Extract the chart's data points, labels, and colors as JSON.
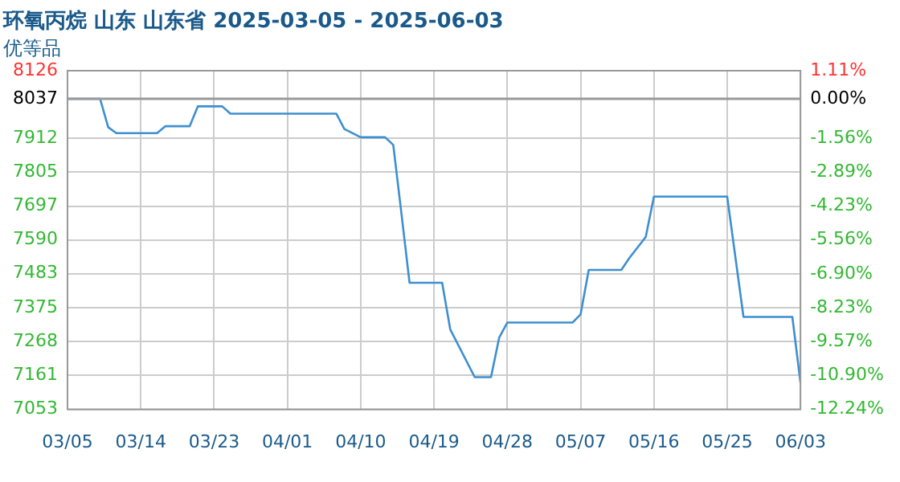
{
  "chart_data": {
    "type": "line",
    "title": "环氧丙烷 山东 山东省 2025-03-05 - 2025-06-03",
    "subtitle": "优等品",
    "x": [
      "2025-03-05",
      "2025-03-09",
      "2025-03-10",
      "2025-03-11",
      "2025-03-16",
      "2025-03-17",
      "2025-03-20",
      "2025-03-21",
      "2025-03-24",
      "2025-03-25",
      "2025-04-07",
      "2025-04-08",
      "2025-04-10",
      "2025-04-13",
      "2025-04-14",
      "2025-04-15",
      "2025-04-16",
      "2025-04-20",
      "2025-04-21",
      "2025-04-24",
      "2025-04-26",
      "2025-04-27",
      "2025-04-28",
      "2025-05-06",
      "2025-05-07",
      "2025-05-08",
      "2025-05-12",
      "2025-05-13",
      "2025-05-15",
      "2025-05-16",
      "2025-05-25",
      "2025-05-27",
      "2025-06-02",
      "2025-06-03"
    ],
    "series": [
      {
        "color": "#3d8fd0",
        "values": [
          8037,
          8037,
          7947,
          7928,
          7928,
          7950,
          7950,
          8013,
          8013,
          7990,
          7990,
          7941,
          7915,
          7915,
          7891,
          7674,
          7454,
          7454,
          7306,
          7155,
          7155,
          7280,
          7328,
          7328,
          7354,
          7495,
          7495,
          7533,
          7599,
          7727,
          7727,
          7346,
          7346,
          7137
        ]
      }
    ],
    "xlim": [
      "2025-03-05",
      "2025-06-03"
    ],
    "xticks": [
      {
        "value": "2025-03-05",
        "label": "03/05"
      },
      {
        "value": "2025-03-14",
        "label": "03/14"
      },
      {
        "value": "2025-03-23",
        "label": "03/23"
      },
      {
        "value": "2025-04-01",
        "label": "04/01"
      },
      {
        "value": "2025-04-10",
        "label": "04/10"
      },
      {
        "value": "2025-04-19",
        "label": "04/19"
      },
      {
        "value": "2025-04-28",
        "label": "04/28"
      },
      {
        "value": "2025-05-07",
        "label": "05/07"
      },
      {
        "value": "2025-05-16",
        "label": "05/16"
      },
      {
        "value": "2025-05-25",
        "label": "05/25"
      },
      {
        "value": "2025-06-03",
        "label": "06/03"
      }
    ],
    "ylim": [
      7053,
      8126
    ],
    "yticks": [
      7053,
      7161,
      7268,
      7375,
      7483,
      7590,
      7697,
      7805,
      7912,
      8037,
      8126
    ],
    "y2lim": [
      -12.24,
      1.11
    ],
    "y2ticks": [
      {
        "value": -12.24,
        "label": "-12.24%"
      },
      {
        "value": -10.9,
        "label": "-10.90%"
      },
      {
        "value": -9.57,
        "label": "-9.57%"
      },
      {
        "value": -8.23,
        "label": "-8.23%"
      },
      {
        "value": -6.9,
        "label": "-6.90%"
      },
      {
        "value": -5.56,
        "label": "-5.56%"
      },
      {
        "value": -4.23,
        "label": "-4.23%"
      },
      {
        "value": -2.89,
        "label": "-2.89%"
      },
      {
        "value": -1.56,
        "label": "-1.56%"
      },
      {
        "value": 0,
        "label": "0.00%"
      },
      {
        "value": 1.11,
        "label": "1.11%"
      }
    ],
    "ref_lines": [
      {
        "axis": "y",
        "value": 8037,
        "color": "#999999"
      }
    ],
    "grid": true,
    "marker": "none",
    "line_style": "solid",
    "legend": false
  }
}
